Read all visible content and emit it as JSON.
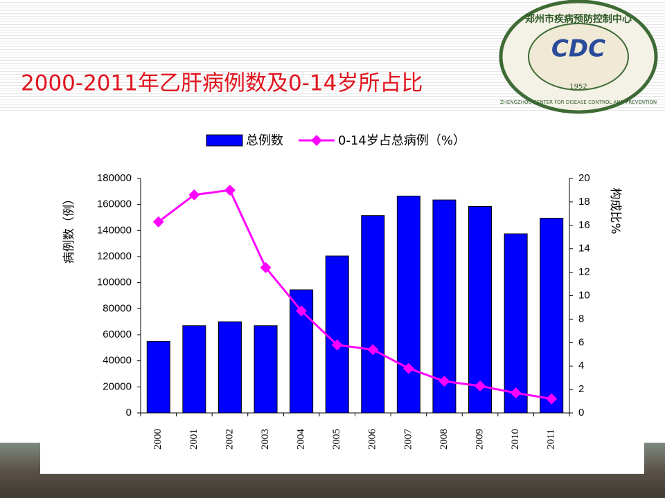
{
  "chart_data": {
    "type": "bar-line",
    "title": "2000-2011年乙肝病例数及0-14岁所占比",
    "ylabel": "病例数（例）",
    "y2label": "构成比%",
    "categories": [
      "2000",
      "2001",
      "2002",
      "2003",
      "2004",
      "2005",
      "2006",
      "2007",
      "2008",
      "2009",
      "2010",
      "2011"
    ],
    "series": [
      {
        "name": "总例数",
        "type": "bar",
        "color": "#0000ff",
        "values": [
          55000,
          67000,
          70000,
          67000,
          94500,
          120500,
          151500,
          166500,
          163500,
          158500,
          137500,
          149500
        ]
      },
      {
        "name": "0-14岁占总病例（%）",
        "type": "line",
        "axis": "y2",
        "color": "#ff00ff",
        "values": [
          16.3,
          18.6,
          19.0,
          12.4,
          8.7,
          5.8,
          5.4,
          3.8,
          2.7,
          2.3,
          1.7,
          1.2
        ]
      }
    ],
    "ylim": [
      0,
      180000
    ],
    "yticks": [
      0,
      20000,
      40000,
      60000,
      80000,
      100000,
      120000,
      140000,
      160000,
      180000
    ],
    "y2lim": [
      0,
      20
    ],
    "y2ticks": [
      0,
      2,
      4,
      6,
      8,
      10,
      12,
      14,
      16,
      18,
      20
    ],
    "legend": "top"
  },
  "logo": {
    "name": "郑州市疾病预防控制中心",
    "mark": "CDC",
    "year": "1952",
    "english": "ZHENGZHOU CENTER FOR DISEASE CONTROL AND PREVENTION"
  }
}
